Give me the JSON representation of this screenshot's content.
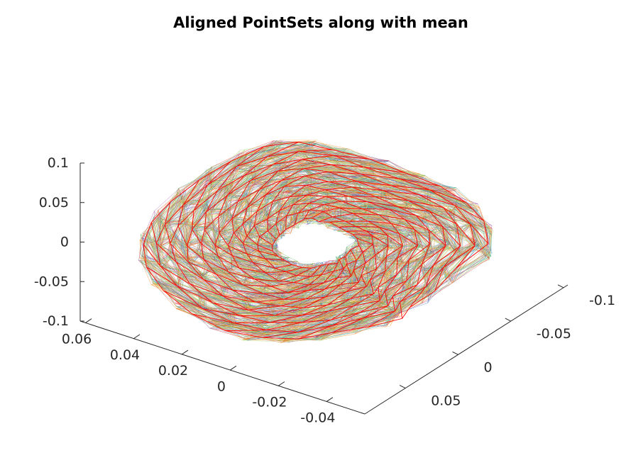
{
  "chart_data": {
    "type": "3d-wireframe",
    "title": "Aligned PointSets along with mean",
    "xlabel": "",
    "ylabel": "",
    "zlabel": "",
    "x_ticks": [
      "0.06",
      "0.04",
      "0.02",
      "0",
      "-0.02",
      "-0.04"
    ],
    "y_ticks": [
      "-0.1",
      "-0.05",
      "0",
      "0.05"
    ],
    "z_ticks": [
      "0.1",
      "0.05",
      "0",
      "-0.05",
      "-0.1"
    ],
    "series_colors": [
      "#e41a1c",
      "#4daf4a",
      "#984ea3",
      "#377eb8",
      "#a6d854",
      "#ff7f00",
      "#80b1d3",
      "#b2df8a",
      "#cab2d6",
      "#fdbf6f",
      "#1b9e77",
      "#d95f02"
    ],
    "mean_color": "#ff0000",
    "grid": false
  }
}
